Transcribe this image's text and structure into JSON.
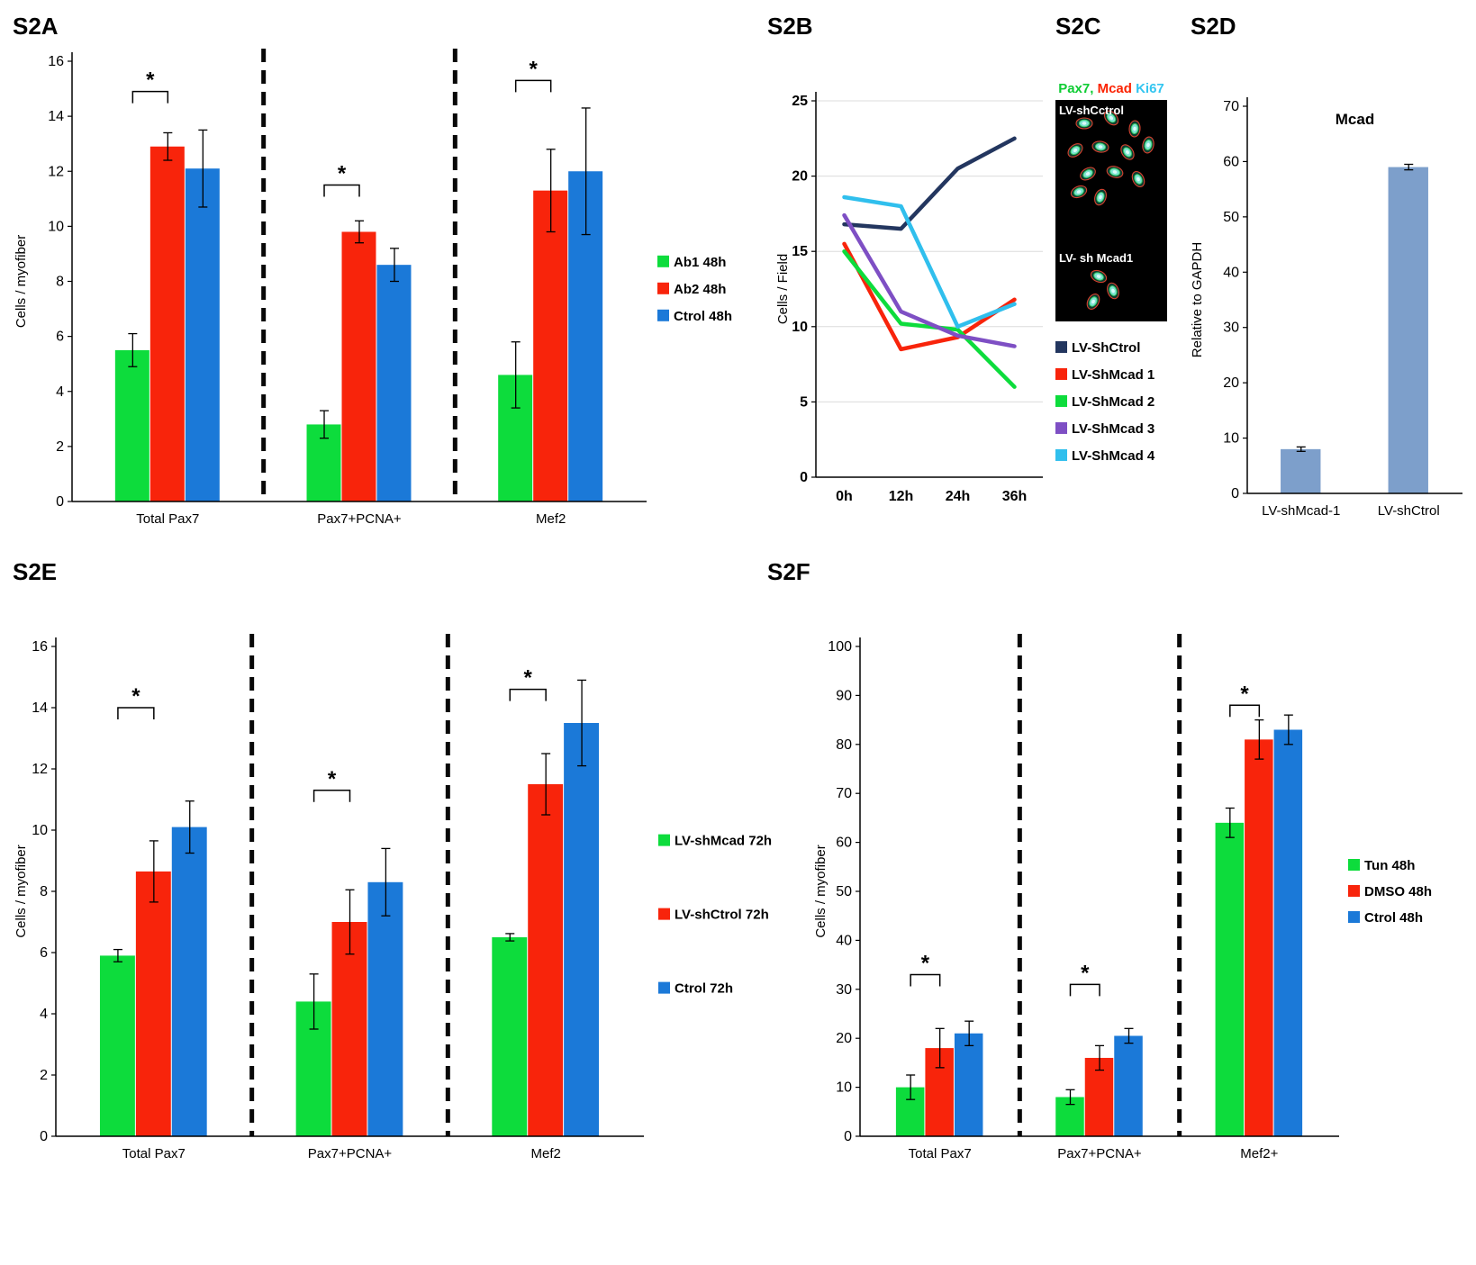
{
  "panels": {
    "s2a": "S2A",
    "s2b": "S2B",
    "s2c": "S2C",
    "s2d": "S2D",
    "s2e": "S2E",
    "s2f": "S2F"
  },
  "s2c": {
    "stain_labels": [
      {
        "text": "Pax7,",
        "color": "#0ecc33"
      },
      {
        "text": "Mcad",
        "color": "#fb2200"
      },
      {
        "text": "Ki67",
        "color": "#33c5f0"
      }
    ],
    "label_top": "LV-shCctrol",
    "label_bottom": "LV- sh Mcad1"
  },
  "chart_data": [
    {
      "id": "s2a",
      "type": "bar",
      "ylabel": "Cells / myofiber",
      "ylim": [
        0,
        16
      ],
      "ytick_step": 2,
      "categories": [
        "Total Pax7",
        "Pax7+PCNA+",
        "Mef2"
      ],
      "series": [
        {
          "name": "Ab1 48h",
          "color": "#0ddc3c",
          "values": [
            5.5,
            2.8,
            4.6
          ],
          "errors": [
            0.6,
            0.5,
            1.2
          ]
        },
        {
          "name": "Ab2 48h",
          "color": "#f8240b",
          "values": [
            12.9,
            9.8,
            11.3
          ],
          "errors": [
            0.5,
            0.4,
            1.5
          ]
        },
        {
          "name": "Ctrol 48h",
          "color": "#1b79d8",
          "values": [
            12.1,
            8.6,
            12.0
          ],
          "errors": [
            1.4,
            0.6,
            2.3
          ]
        }
      ],
      "separators": true,
      "legend_position": "right",
      "sig_brackets": [
        {
          "group": 0,
          "from": 0,
          "to": 1,
          "y": 14.9,
          "label": "*"
        },
        {
          "group": 1,
          "from": 0,
          "to": 1,
          "y": 11.5,
          "label": "*"
        },
        {
          "group": 2,
          "from": 0,
          "to": 1,
          "y": 15.3,
          "label": "*"
        }
      ]
    },
    {
      "id": "s2b",
      "type": "line",
      "ylabel": "Cells / Field",
      "ylim": [
        0,
        25
      ],
      "ytick_step": 5,
      "x": [
        "0h",
        "12h",
        "24h",
        "36h"
      ],
      "grid": true,
      "legend_position": "right-bottom",
      "series": [
        {
          "name": "LV-ShCtrol",
          "color": "#23365f",
          "values": [
            16.8,
            16.5,
            20.5,
            22.5
          ]
        },
        {
          "name": "LV-ShMcad 1",
          "color": "#f8240b",
          "values": [
            15.5,
            8.5,
            9.3,
            11.8
          ]
        },
        {
          "name": "LV-ShMcad 2",
          "color": "#0ddc3c",
          "values": [
            15.0,
            10.2,
            9.8,
            6.0
          ]
        },
        {
          "name": "LV-ShMcad 3",
          "color": "#7e4fc4",
          "values": [
            17.4,
            11.0,
            9.4,
            8.7
          ]
        },
        {
          "name": "LV-ShMcad 4",
          "color": "#30bfed",
          "values": [
            18.6,
            18.0,
            10.0,
            11.5
          ]
        }
      ]
    },
    {
      "id": "s2d",
      "type": "bar",
      "title": "Mcad",
      "ylabel": "Relative to GAPDH",
      "ylim": [
        0,
        70
      ],
      "ytick_step": 10,
      "categories": [
        "LV-shMcad-1",
        "LV-shCtrol"
      ],
      "series": [
        {
          "name": "",
          "color": "#7d9fcb",
          "values": [
            8,
            59
          ],
          "errors": [
            0.4,
            0.5
          ]
        }
      ]
    },
    {
      "id": "s2e",
      "type": "bar",
      "ylabel": "Cells / myofiber",
      "ylim": [
        0,
        16
      ],
      "ytick_step": 2,
      "categories": [
        "Total Pax7",
        "Pax7+PCNA+",
        "Mef2"
      ],
      "series": [
        {
          "name": "LV-shMcad 72h",
          "color": "#0ddc3c",
          "values": [
            5.9,
            4.4,
            6.5
          ],
          "errors": [
            0.2,
            0.9,
            0.12
          ]
        },
        {
          "name": "LV-shCtrol 72h",
          "color": "#f8240b",
          "values": [
            8.65,
            7.0,
            11.5
          ],
          "errors": [
            1.0,
            1.05,
            1.0
          ]
        },
        {
          "name": "Ctrol 72h",
          "color": "#1b79d8",
          "values": [
            10.1,
            8.3,
            13.5
          ],
          "errors": [
            0.85,
            1.1,
            1.4
          ]
        }
      ],
      "separators": true,
      "legend_position": "right",
      "sig_brackets": [
        {
          "group": 0,
          "from": 0,
          "to": 1,
          "y": 14.0,
          "label": "*"
        },
        {
          "group": 1,
          "from": 0,
          "to": 1,
          "y": 11.3,
          "label": "*"
        },
        {
          "group": 2,
          "from": 0,
          "to": 1,
          "y": 14.6,
          "label": "*"
        }
      ]
    },
    {
      "id": "s2f",
      "type": "bar",
      "ylabel": "Cells / myofiber",
      "ylim": [
        0,
        100
      ],
      "ytick_step": 10,
      "categories": [
        "Total Pax7",
        "Pax7+PCNA+",
        "Mef2+"
      ],
      "series": [
        {
          "name": "Tun 48h",
          "color": "#0ddc3c",
          "values": [
            10,
            8,
            64
          ],
          "errors": [
            2.5,
            1.5,
            3
          ]
        },
        {
          "name": "DMSO 48h",
          "color": "#f8240b",
          "values": [
            18,
            16,
            81
          ],
          "errors": [
            4,
            2.5,
            4
          ]
        },
        {
          "name": "Ctrol 48h",
          "color": "#1b79d8",
          "values": [
            21,
            20.5,
            83
          ],
          "errors": [
            2.5,
            1.5,
            3
          ]
        }
      ],
      "separators": true,
      "legend_position": "right",
      "sig_brackets": [
        {
          "group": 0,
          "from": 0,
          "to": 1,
          "y": 33,
          "label": "*"
        },
        {
          "group": 1,
          "from": 0,
          "to": 1,
          "y": 31,
          "label": "*"
        },
        {
          "group": 2,
          "from": 0,
          "to": 1,
          "y": 88,
          "label": "*"
        }
      ]
    }
  ]
}
